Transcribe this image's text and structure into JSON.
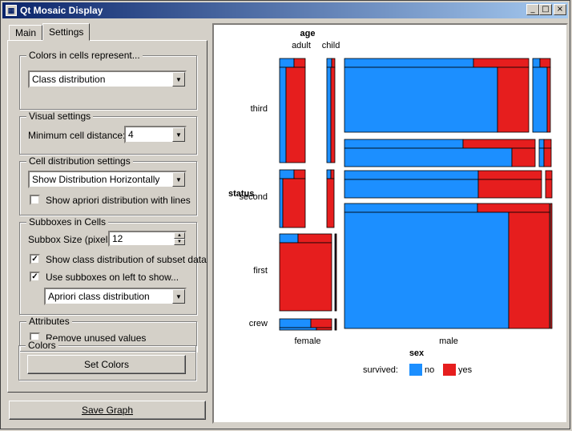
{
  "window": {
    "title": "Qt Mosaic Display",
    "icon": "qt-app-icon",
    "controls": {
      "minimize": "_",
      "maximize": "□",
      "close": "×"
    }
  },
  "tabs": [
    {
      "label": "Main",
      "active": false
    },
    {
      "label": "Settings",
      "active": true
    }
  ],
  "settings": {
    "colors_group": {
      "title": "Colors in cells represent...",
      "value": "Class distribution"
    },
    "visual_group": {
      "title": "Visual settings",
      "min_distance_label": "Minimum cell distance:",
      "min_distance_value": "4"
    },
    "cell_dist_group": {
      "title": "Cell distribution settings",
      "value": "Show Distribution Horizontally",
      "apriori_label": "Show apriori distribution with lines",
      "apriori_checked": false
    },
    "subboxes_group": {
      "title": "Subboxes in Cells",
      "size_label": "Subbox Size (pixels):",
      "size_value": "12",
      "show_class_label": "Show class distribution of subset data",
      "show_class_checked": true,
      "use_subboxes_label": "Use subboxes on left to show...",
      "use_subboxes_checked": true,
      "subbox_mode": "Apriori class distribution"
    },
    "attributes_group": {
      "title": "Attributes",
      "remove_label": "Remove unused values",
      "remove_checked": false
    },
    "colors2_group": {
      "title": "Colors",
      "set_colors_label": "Set Colors"
    }
  },
  "save_graph_label": "Save Graph",
  "mosaic": {
    "top_attribute": "age",
    "top_values": [
      "adult",
      "child"
    ],
    "left_attribute": "status",
    "left_values": [
      "third",
      "second",
      "first",
      "crew"
    ],
    "bottom_attribute": "sex",
    "bottom_values": [
      "female",
      "male"
    ],
    "legend_label": "survived:",
    "legend": [
      {
        "label": "no",
        "color": "#1c8fff"
      },
      {
        "label": "yes",
        "color": "#e61e1e"
      }
    ]
  }
}
